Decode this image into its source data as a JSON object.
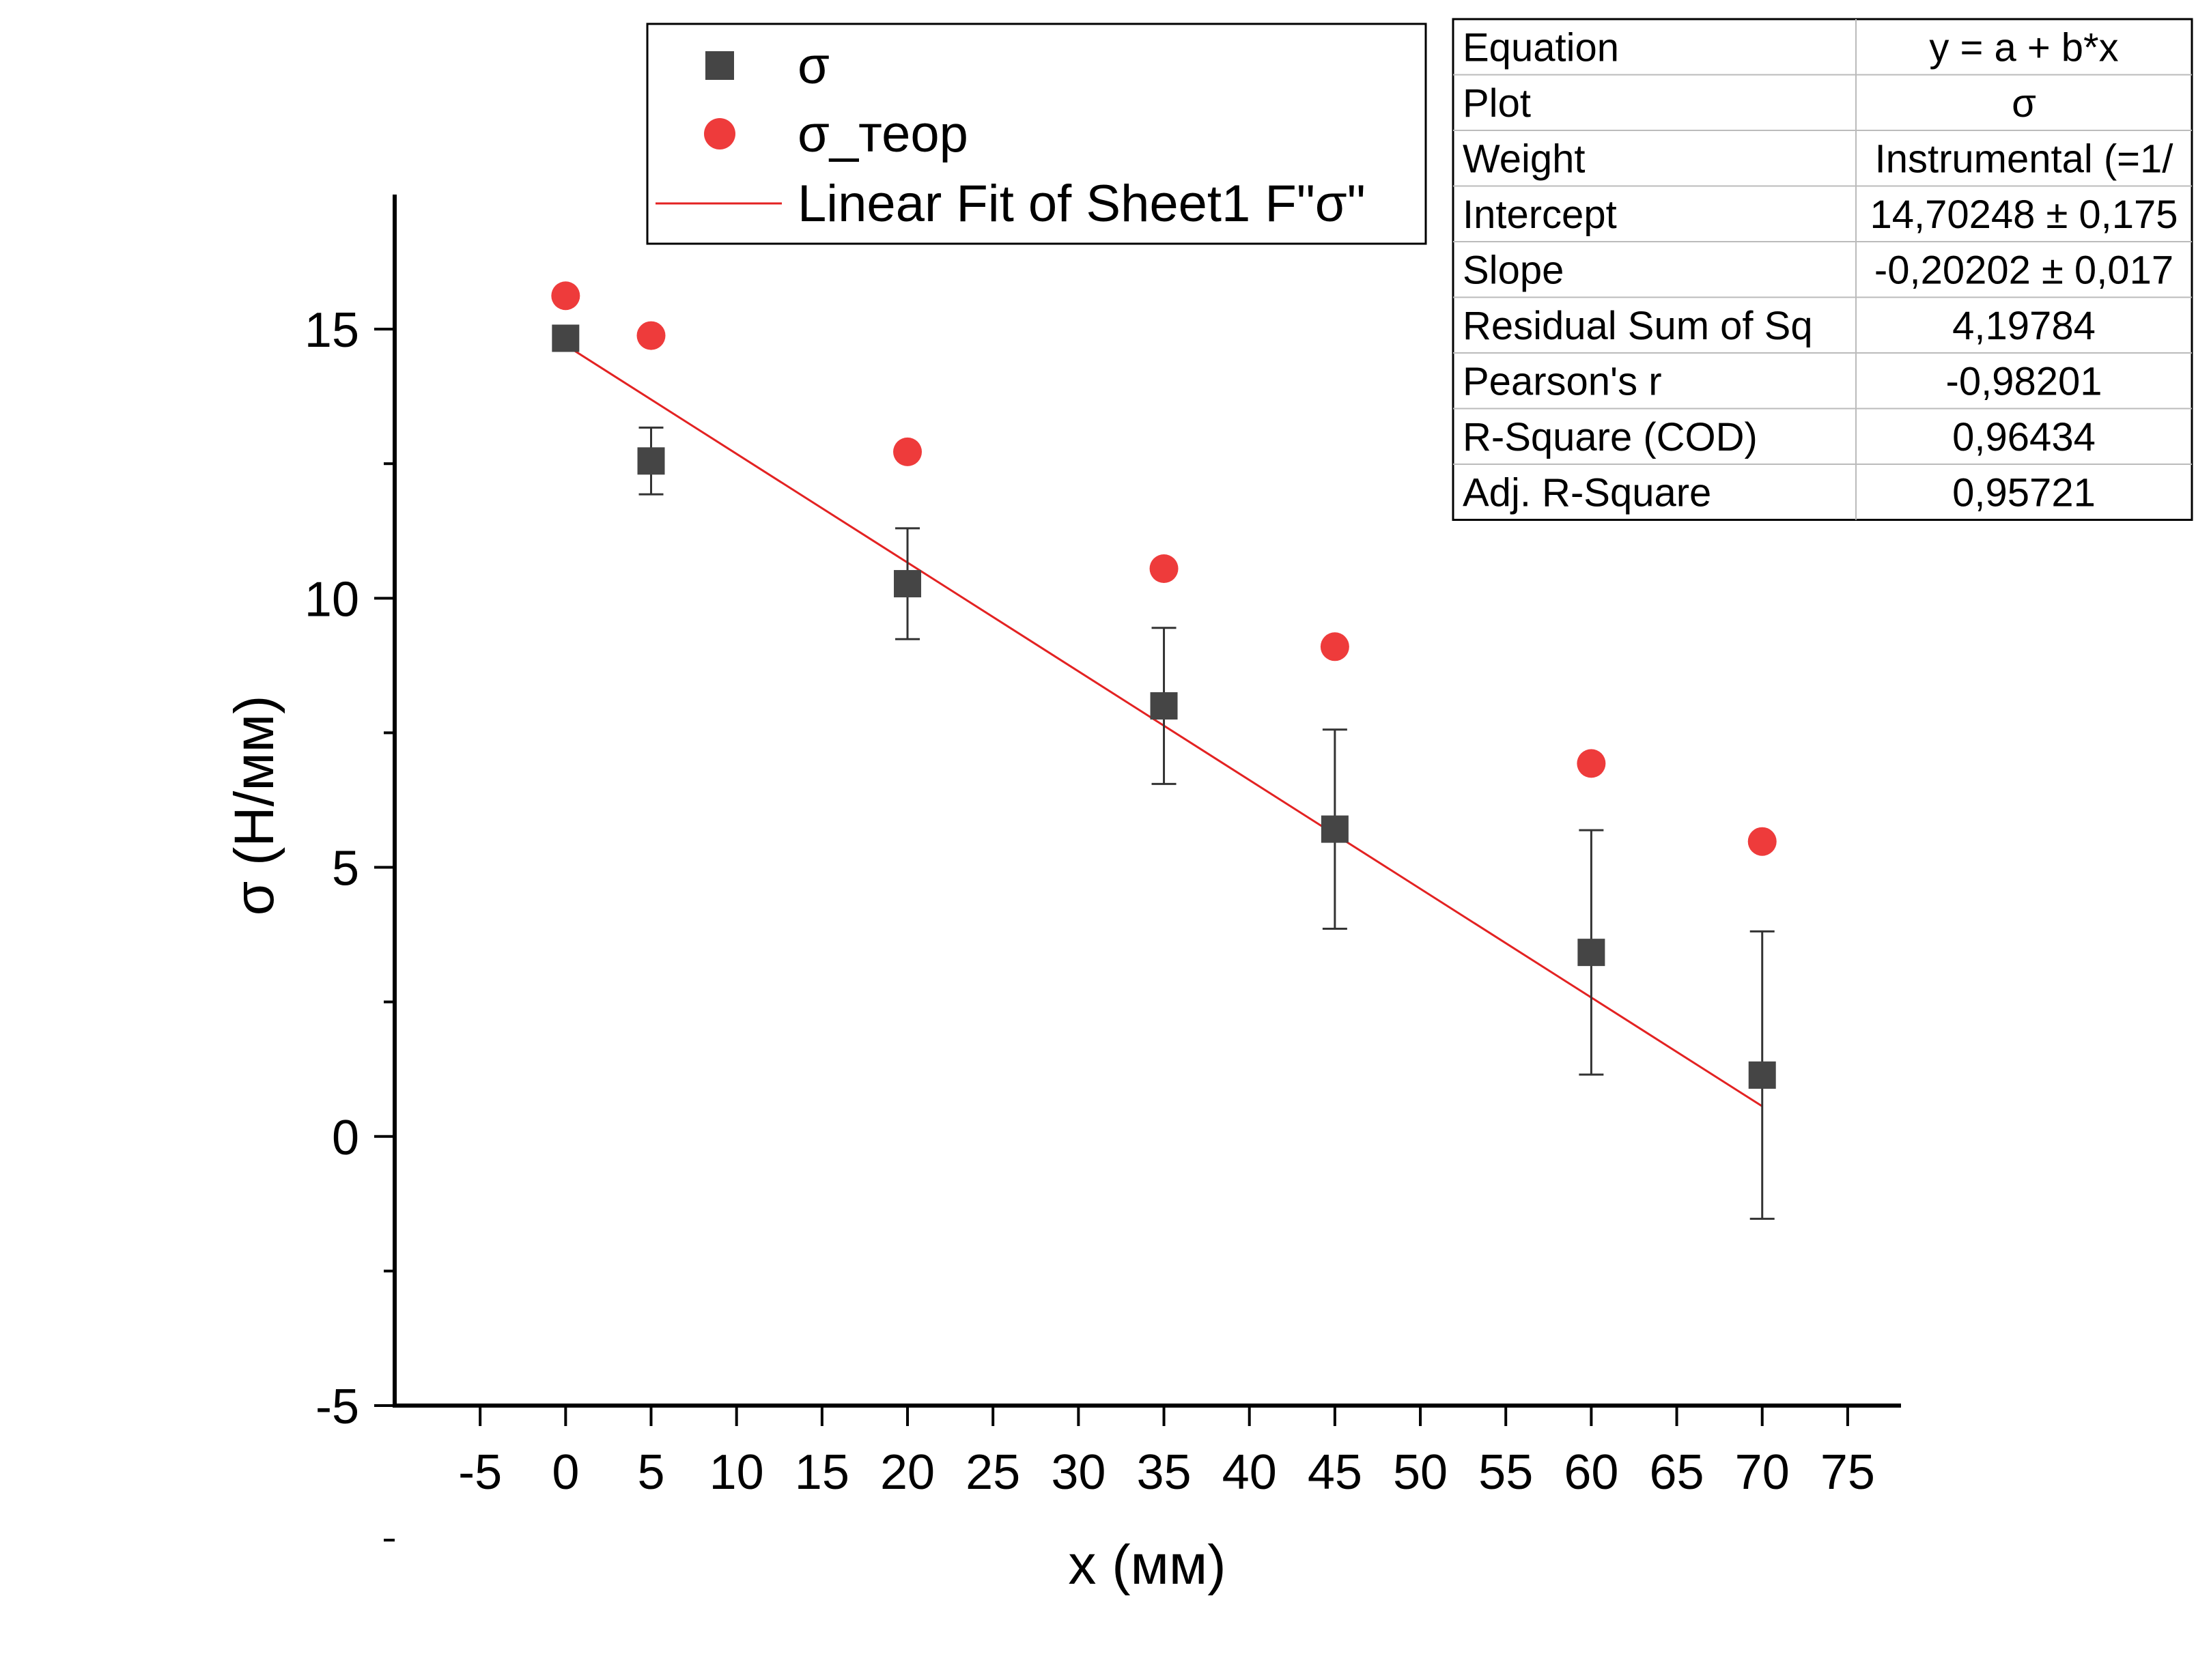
{
  "chart_data": {
    "type": "scatter",
    "xlabel": "x (мм)",
    "ylabel": "σ (Н/мм)",
    "xlim": [
      -10,
      78
    ],
    "ylim": [
      -5,
      17.5
    ],
    "x_ticks": [
      "-5",
      "0",
      "5",
      "10",
      "15",
      "20",
      "25",
      "30",
      "35",
      "40",
      "45",
      "50",
      "55",
      "60",
      "65",
      "70",
      "75"
    ],
    "y_ticks": [
      "-5",
      "0",
      "5",
      "10",
      "15"
    ],
    "grid": false,
    "legend_position": "top",
    "series": [
      {
        "name": "σ",
        "marker": "square",
        "color": "#454545",
        "x": [
          0,
          5,
          20,
          35,
          45,
          60,
          70
        ],
        "y": [
          14.83,
          12.55,
          10.27,
          8.0,
          5.71,
          3.42,
          1.14
        ],
        "error": [
          0.0,
          0.62,
          1.03,
          1.45,
          1.85,
          2.27,
          2.67
        ]
      },
      {
        "name": "σ_теор",
        "marker": "circle",
        "color": "#ee3b3b",
        "x": [
          0,
          5,
          20,
          35,
          45,
          60,
          70
        ],
        "y": [
          15.62,
          14.88,
          12.72,
          10.55,
          9.1,
          6.93,
          5.48
        ]
      },
      {
        "name": "Linear Fit of Sheet1 F\"σ\"",
        "type": "line",
        "color": "#e32222",
        "x": [
          0,
          70
        ],
        "y": [
          14.70248,
          0.56108
        ]
      }
    ],
    "stats_table": [
      [
        "Equation",
        "y = a + b*x"
      ],
      [
        "Plot",
        "σ"
      ],
      [
        "Weight",
        "Instrumental (=1/"
      ],
      [
        "Intercept",
        "14,70248 ± 0,175"
      ],
      [
        "Slope",
        "-0,20202 ± 0,017"
      ],
      [
        "Residual Sum of Sq",
        "4,19784"
      ],
      [
        "Pearson's r",
        "-0,98201"
      ],
      [
        "R-Square (COD)",
        "0,96434"
      ],
      [
        "Adj. R-Square",
        "0,95721"
      ]
    ]
  }
}
